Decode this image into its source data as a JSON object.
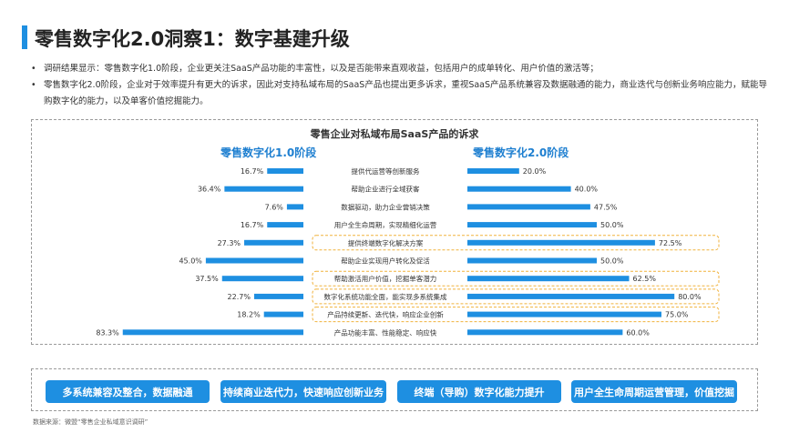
{
  "page": {
    "title": "零售数字化2.0洞察1：数字基建升级",
    "bullets": [
      "调研结果显示：零售数字化1.0阶段，企业更关注SaaS产品功能的丰富性，以及是否能带来直观收益，包括用户的成单转化、用户价值的激活等；",
      "零售数字化2.0阶段，企业对于效率提升有更大的诉求，因此对支持私域布局的SaaS产品也提出更多诉求，重视SaaS产品系统兼容及数据融通的能力，商业迭代与创新业务响应能力，赋能导购数字化的能力，以及单客价值挖掘能力。"
    ],
    "source": "数据来源：微盟“零售企业私域意识调研”"
  },
  "bottom": {
    "pills": [
      "多系统兼容及整合，数据融通",
      "持续商业迭代力，快速响应创新业务",
      "终端（导购）数字化能力提升",
      "用户全生命周期运营管理，价值挖掘"
    ]
  },
  "colors": {
    "bar": "#1e8fe1",
    "highlight_border": "#f0b23c",
    "side_title": "#1e7fd0"
  },
  "chart_data": {
    "type": "bar",
    "title": "零售企业对私域布局SaaS产品的诉求",
    "categories": [
      "提供代运营等创新服务",
      "帮助企业进行全域获客",
      "数据驱动，助力企业营销决策",
      "用户全生命周期，实现精细化运营",
      "提供终端数字化解决方案",
      "帮助企业实现用户转化及促活",
      "帮助激活用户价值，挖掘单客潜力",
      "数字化系统功能全面，能实现多系统集成",
      "产品持续更新、迭代快，响应企业创新",
      "产品功能丰富、性能稳定、响应快"
    ],
    "highlighted": [
      false,
      false,
      false,
      false,
      true,
      false,
      true,
      true,
      true,
      false
    ],
    "series": [
      {
        "name": "零售数字化1.0阶段",
        "values": [
          16.7,
          36.4,
          7.6,
          16.7,
          27.3,
          45.0,
          37.5,
          22.7,
          18.2,
          83.3
        ],
        "labels": [
          "16.7%",
          "36.4%",
          "7.6%",
          "16.7%",
          "27.3%",
          "45.0%",
          "37.5%",
          "22.7%",
          "18.2%",
          "83.3%"
        ]
      },
      {
        "name": "零售数字化2.0阶段",
        "values": [
          20.0,
          40.0,
          47.5,
          50.0,
          72.5,
          50.0,
          62.5,
          80.0,
          75.0,
          60.0
        ],
        "labels": [
          "20.0%",
          "40.0%",
          "47.5%",
          "50.0%",
          "72.5%",
          "50.0%",
          "62.5%",
          "80.0%",
          "75.0%",
          "60.0%"
        ]
      }
    ]
  }
}
